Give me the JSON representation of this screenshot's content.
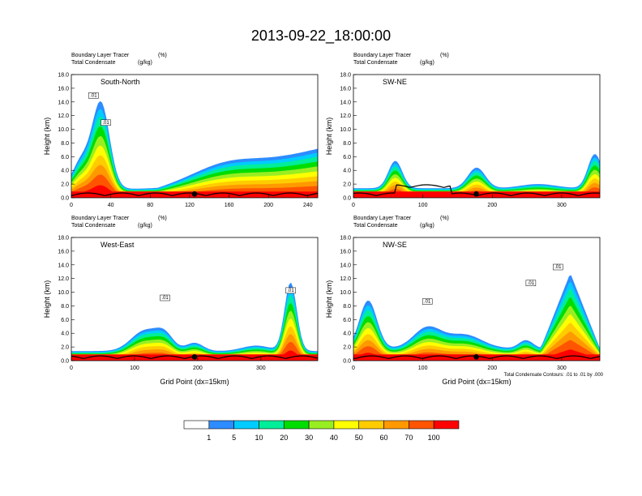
{
  "title": "2013-09-22_18:00:00",
  "panel_header": {
    "line1": "Boundary Layer Tracer",
    "line1_unit": "(%)",
    "line2": "Total Condensate",
    "line2_unit": "(g/kg)"
  },
  "contour_note": "Total Condensate Contours: .01 to .01 by .000",
  "colorbar": {
    "labels": [
      "1",
      "5",
      "10",
      "20",
      "30",
      "40",
      "50",
      "60",
      "70",
      "100"
    ],
    "colors": [
      "#ffffff",
      "#2d8cff",
      "#00ccff",
      "#00ee99",
      "#00dd00",
      "#99ee22",
      "#ffff00",
      "#ffcc00",
      "#ff9900",
      "#ff5500",
      "#ff0000"
    ]
  },
  "chart_data": [
    {
      "type": "heatmap",
      "name": "South-North",
      "xlabel": "",
      "ylabel": "Height (km)",
      "xlim": [
        0,
        250
      ],
      "ylim": [
        0,
        18
      ],
      "xticks": [
        "0",
        "40",
        "80",
        "120",
        "160",
        "200",
        "240"
      ],
      "yticks": [
        "0.0",
        "2.0",
        "4.0",
        "6.0",
        "8.0",
        "10.0",
        "12.0",
        "14.0",
        "16.0",
        "18.0"
      ],
      "contour_labels": [
        ".01",
        ".01"
      ],
      "marker_x": 125
    },
    {
      "type": "heatmap",
      "name": "SW-NE",
      "xlabel": "",
      "ylabel": "Height (km)",
      "xlim": [
        0,
        355
      ],
      "ylim": [
        0,
        18
      ],
      "xticks": [
        "0",
        "100",
        "200",
        "300"
      ],
      "yticks": [
        "0.0",
        "2.0",
        "4.0",
        "6.0",
        "8.0",
        "10.0",
        "12.0",
        "14.0",
        "16.0",
        "18.0"
      ],
      "contour_labels": [],
      "marker_x": 177
    },
    {
      "type": "heatmap",
      "name": "West-East",
      "xlabel": "Grid Point (dx=15km)",
      "ylabel": "Height (km)",
      "xlim": [
        0,
        390
      ],
      "ylim": [
        0,
        18
      ],
      "xticks": [
        "0",
        "100",
        "200",
        "300"
      ],
      "yticks": [
        "0.0",
        "2.0",
        "4.0",
        "6.0",
        "8.0",
        "10.0",
        "12.0",
        "14.0",
        "16.0",
        "18.0"
      ],
      "contour_labels": [
        ".01",
        ".01"
      ],
      "marker_x": 195
    },
    {
      "type": "heatmap",
      "name": "NW-SE",
      "xlabel": "Grid Point (dx=15km)",
      "ylabel": "Height (km)",
      "xlim": [
        0,
        355
      ],
      "ylim": [
        0,
        18
      ],
      "xticks": [
        "0",
        "100",
        "200",
        "300"
      ],
      "yticks": [
        "0.0",
        "2.0",
        "4.0",
        "6.0",
        "8.0",
        "10.0",
        "12.0",
        "14.0",
        "16.0",
        "18.0"
      ],
      "contour_labels": [
        ".01",
        ".01",
        ".01"
      ],
      "marker_x": 177
    }
  ]
}
